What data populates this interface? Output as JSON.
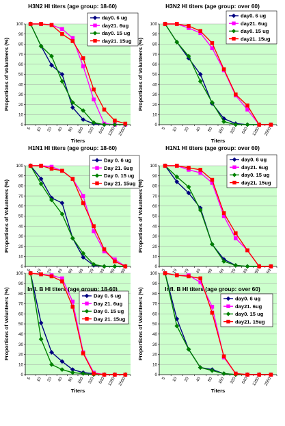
{
  "colors": {
    "plot_bg": "#ccffcc",
    "gridline": "#a0a0a0",
    "day0_6ug": "#000080",
    "day21_6ug": "#ff00ff",
    "day0_15ug": "#008000",
    "day21_15ug": "#ff0000"
  },
  "chart_data": [
    {
      "type": "line",
      "title": "H3N2 HI titers (age group: 18-60)",
      "xlabel": "Titers",
      "ylabel": "Proportions of Volunteers (%)",
      "categories": [
        "5",
        "10",
        "20",
        "40",
        "80",
        "160",
        "320",
        "640",
        "1280",
        "2560"
      ],
      "ylim": [
        0,
        100
      ],
      "yticks": [
        0,
        10,
        20,
        30,
        40,
        50,
        60,
        70,
        80,
        90,
        100
      ],
      "grid": "horizontal",
      "legend_position": "top-right",
      "series": [
        {
          "name": "day0. 6 ug",
          "color": "#000080",
          "marker": "diamond",
          "values": [
            100,
            78,
            59,
            50,
            17,
            5,
            1,
            0,
            0,
            0
          ]
        },
        {
          "name": "day21. 6ug",
          "color": "#ff00ff",
          "marker": "square",
          "values": [
            100,
            100,
            99,
            95,
            86,
            58,
            25,
            1,
            0,
            0
          ]
        },
        {
          "name": "day0. 15 ug",
          "color": "#008000",
          "marker": "diamond",
          "values": [
            100,
            78,
            68,
            43,
            22,
            14,
            2,
            0,
            0,
            0
          ]
        },
        {
          "name": "day21. 15ug",
          "color": "#ff0000",
          "marker": "square",
          "values": [
            100,
            100,
            99,
            90,
            83,
            66,
            35,
            15,
            4,
            1
          ]
        }
      ]
    },
    {
      "type": "line",
      "title": "H3N2 HI titers (age group: over 60)",
      "xlabel": "Titers",
      "ylabel": "Proportions of Volunteers (%)",
      "categories": [
        "5",
        "10",
        "20",
        "40",
        "80",
        "160",
        "320",
        "640",
        "1280",
        "2560"
      ],
      "ylim": [
        0,
        100
      ],
      "yticks": [
        0,
        10,
        20,
        30,
        40,
        50,
        60,
        70,
        80,
        90,
        100
      ],
      "grid": "horizontal",
      "legend_position": "top-right",
      "series": [
        {
          "name": "day0. 6 ug",
          "color": "#000080",
          "marker": "diamond",
          "values": [
            100,
            82,
            66,
            50,
            21,
            6,
            1,
            0,
            0,
            0
          ]
        },
        {
          "name": "day21. 6ug",
          "color": "#ff00ff",
          "marker": "square",
          "values": [
            100,
            100,
            96,
            91,
            76,
            54,
            29,
            15,
            0,
            0
          ]
        },
        {
          "name": "day0. 15 ug",
          "color": "#008000",
          "marker": "diamond",
          "values": [
            100,
            82,
            68,
            43,
            22,
            3,
            0,
            0,
            0,
            0
          ]
        },
        {
          "name": "day21. 15ug",
          "color": "#ff0000",
          "marker": "square",
          "values": [
            100,
            100,
            98,
            93,
            81,
            55,
            30,
            19,
            0,
            0
          ]
        }
      ]
    },
    {
      "type": "line",
      "title": "H1N1 HI titers (age group: 18-60)",
      "xlabel": "Titers",
      "ylabel": "Proportions of Volunteers (%)",
      "categories": [
        "5",
        "10",
        "20",
        "40",
        "80",
        "160",
        "320",
        "640",
        "1280",
        "2560"
      ],
      "ylim": [
        0,
        100
      ],
      "yticks": [
        0,
        10,
        20,
        30,
        40,
        50,
        60,
        70,
        80,
        90,
        100
      ],
      "grid": "horizontal",
      "legend_position": "top-right",
      "series": [
        {
          "name": "Day 0.  6 ug",
          "color": "#000080",
          "marker": "diamond",
          "values": [
            100,
            87,
            68,
            63,
            28,
            9,
            1,
            0,
            0,
            0
          ]
        },
        {
          "name": "Day 21. 6ug",
          "color": "#ff00ff",
          "marker": "square",
          "values": [
            100,
            100,
            99,
            95,
            87,
            70,
            35,
            15,
            7,
            0
          ]
        },
        {
          "name": "Day 0. 15 ug",
          "color": "#008000",
          "marker": "diamond",
          "values": [
            100,
            82,
            66,
            52,
            28,
            13,
            2,
            0,
            0,
            0
          ]
        },
        {
          "name": "Day 21. 15ug",
          "color": "#ff0000",
          "marker": "square",
          "values": [
            100,
            100,
            97,
            95,
            87,
            63,
            40,
            17,
            5,
            0
          ]
        }
      ]
    },
    {
      "type": "line",
      "title": "H1N1 HI titers (age group: over 60)",
      "xlabel": "Titers",
      "ylabel": "Proportions of Volunteers (%)",
      "categories": [
        "5",
        "10",
        "20",
        "40",
        "80",
        "160",
        "320",
        "640",
        "1280",
        "2560"
      ],
      "ylim": [
        0,
        100
      ],
      "yticks": [
        0,
        10,
        20,
        30,
        40,
        50,
        60,
        70,
        80,
        90,
        100
      ],
      "grid": "horizontal",
      "legend_position": "top-right",
      "series": [
        {
          "name": "day0. 6 ug",
          "color": "#000080",
          "marker": "diamond",
          "values": [
            100,
            84,
            73,
            58,
            22,
            7,
            1,
            0,
            0,
            0
          ]
        },
        {
          "name": "day21. 6ug",
          "color": "#ff00ff",
          "marker": "square",
          "values": [
            100,
            100,
            96,
            93,
            83,
            50,
            28,
            16,
            0,
            0
          ]
        },
        {
          "name": "day0. 15 ug",
          "color": "#008000",
          "marker": "diamond",
          "values": [
            100,
            89,
            79,
            56,
            22,
            5,
            1,
            0,
            0,
            0
          ]
        },
        {
          "name": "day21. 15ug",
          "color": "#ff0000",
          "marker": "square",
          "values": [
            100,
            100,
            98,
            96,
            86,
            53,
            33,
            16,
            0,
            0
          ]
        }
      ]
    },
    {
      "type": "line",
      "title": "Infl. B HI titers (age group: 18-60)",
      "xlabel": "Titers",
      "ylabel": "Proportions of Volunteers (%)",
      "categories": [
        "5",
        "10",
        "20",
        "40",
        "80",
        "160",
        "320",
        "640",
        "1280",
        "2560"
      ],
      "ylim": [
        0,
        100
      ],
      "yticks": [
        0,
        10,
        20,
        30,
        40,
        50,
        60,
        70,
        80,
        90,
        100
      ],
      "grid": "horizontal",
      "legend_position": "top-right",
      "series": [
        {
          "name": "Day 0.  6 ug",
          "color": "#000080",
          "marker": "diamond",
          "values": [
            100,
            51,
            22,
            13,
            5,
            2,
            1,
            0,
            0,
            0
          ]
        },
        {
          "name": "Day 21. 6ug",
          "color": "#ff00ff",
          "marker": "square",
          "values": [
            100,
            99,
            98,
            95,
            72,
            22,
            2,
            0,
            0,
            0
          ]
        },
        {
          "name": "Day 0. 15 ug",
          "color": "#008000",
          "marker": "diamond",
          "values": [
            100,
            35,
            10,
            5,
            2,
            1,
            0,
            0,
            0,
            0
          ]
        },
        {
          "name": "Day 21. 15ug",
          "color": "#ff0000",
          "marker": "square",
          "values": [
            100,
            99,
            97,
            92,
            67,
            21,
            1,
            0,
            0,
            0
          ]
        }
      ]
    },
    {
      "type": "line",
      "title": "Infl. B HI titers (age group: over 60)",
      "xlabel": "Titers",
      "ylabel": "Proportions of Volunteers (%)",
      "categories": [
        "5",
        "10",
        "20",
        "40",
        "80",
        "160",
        "320",
        "640",
        "1280",
        "2560"
      ],
      "ylim": [
        0,
        100
      ],
      "yticks": [
        0,
        10,
        20,
        30,
        40,
        50,
        60,
        70,
        80,
        90,
        100
      ],
      "grid": "horizontal",
      "legend_position": "top-right",
      "series": [
        {
          "name": "day0. 6 ug",
          "color": "#000080",
          "marker": "diamond",
          "values": [
            100,
            55,
            25,
            7,
            5,
            1,
            0,
            0,
            0,
            0
          ]
        },
        {
          "name": "day21. 6ug",
          "color": "#ff00ff",
          "marker": "square",
          "values": [
            100,
            98,
            98,
            91,
            67,
            17,
            1,
            0,
            0,
            0
          ]
        },
        {
          "name": "day0. 15 ug",
          "color": "#008000",
          "marker": "diamond",
          "values": [
            100,
            48,
            25,
            7,
            4,
            1,
            0,
            0,
            0,
            0
          ]
        },
        {
          "name": "day21. 15ug",
          "color": "#ff0000",
          "marker": "square",
          "values": [
            100,
            98,
            97,
            95,
            61,
            18,
            1,
            0,
            0,
            0
          ]
        }
      ]
    }
  ]
}
